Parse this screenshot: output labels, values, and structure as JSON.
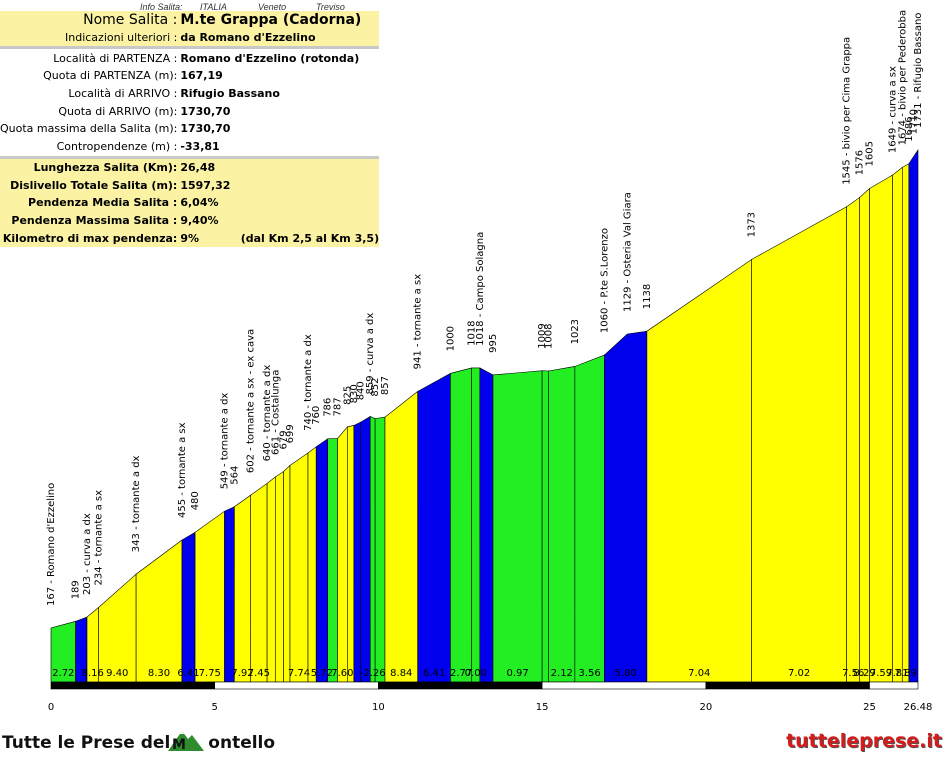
{
  "header": {
    "info_label": "Info Salita:",
    "country": "ITALIA",
    "region": "Veneto",
    "province": "Treviso"
  },
  "table": {
    "nome_label": "Nome Salita :",
    "nome_value": "M.te Grappa (Cadorna)",
    "indicazioni_label": "Indicazioni ulteriori :",
    "indicazioni_value": "da Romano d'Ezzelino",
    "partenza_label": "Località di PARTENZA :",
    "partenza_value": "Romano d'Ezzelino (rotonda)",
    "quota_partenza_label": "Quota di PARTENZA (m):",
    "quota_partenza_value": "167,19",
    "arrivo_label": "Località di ARRIVO :",
    "arrivo_value": "Rifugio Bassano",
    "quota_arrivo_label": "Quota di ARRIVO (m):",
    "quota_arrivo_value": "1730,70",
    "quota_max_label": "Quota massima della Salita (m):",
    "quota_max_value": "1730,70",
    "contropendenze_label": "Contropendenze (m) :",
    "contropendenze_value": "-33,81",
    "lunghezza_label": "Lunghezza Salita (Km):",
    "lunghezza_value": "26,48",
    "dislivello_label": "Dislivello Totale Salita (m):",
    "dislivello_value": "1597,32",
    "pend_media_label": "Pendenza Media Salita :",
    "pend_media_value": "6,04%",
    "pend_max_label": "Pendenza Massima Salita :",
    "pend_max_value": "9,40%",
    "km_max_label": "Kilometro di max pendenza:",
    "km_max_value": "9%",
    "km_max_range": "(dal Km 2,5 al Km 3,5)"
  },
  "footer": {
    "left_text_1": "Tutte le Prese del",
    "left_text_2": "ontello",
    "right_text": "tutteleprese.it"
  },
  "colors": {
    "green": "#22ee22",
    "yellow": "#ffff00",
    "blue": "#0000ee",
    "header_yellow": "#fbf3a3"
  },
  "chart_data": {
    "type": "area",
    "xlim": [
      0,
      26.48
    ],
    "x_ticks": [
      "0",
      "5",
      "10",
      "15",
      "20",
      "25",
      "26.48"
    ],
    "tick_values": [
      0,
      5,
      10,
      15,
      20,
      25,
      26.48
    ],
    "profile": [
      [
        0,
        167
      ],
      [
        0.75,
        189
      ],
      [
        1.1,
        203
      ],
      [
        1.45,
        234
      ],
      [
        2.6,
        343
      ],
      [
        4.0,
        455
      ],
      [
        4.4,
        480
      ],
      [
        5.3,
        549
      ],
      [
        5.6,
        564
      ],
      [
        6.1,
        602
      ],
      [
        6.6,
        640
      ],
      [
        6.85,
        661
      ],
      [
        7.1,
        679
      ],
      [
        7.3,
        699
      ],
      [
        7.85,
        740
      ],
      [
        8.1,
        760
      ],
      [
        8.45,
        786
      ],
      [
        8.75,
        787
      ],
      [
        9.05,
        825
      ],
      [
        9.25,
        830
      ],
      [
        9.45,
        840
      ],
      [
        9.75,
        859
      ],
      [
        9.9,
        852
      ],
      [
        10.2,
        857
      ],
      [
        11.2,
        941
      ],
      [
        12.2,
        1000
      ],
      [
        12.85,
        1018
      ],
      [
        13.1,
        1018
      ],
      [
        13.5,
        995
      ],
      [
        15.0,
        1009
      ],
      [
        15.2,
        1008
      ],
      [
        16.0,
        1023
      ],
      [
        16.9,
        1060
      ],
      [
        17.6,
        1129
      ],
      [
        18.2,
        1138
      ],
      [
        21.4,
        1373
      ],
      [
        24.3,
        1545
      ],
      [
        24.7,
        1576
      ],
      [
        25.0,
        1605
      ],
      [
        25.7,
        1649
      ],
      [
        26.0,
        1674
      ],
      [
        26.2,
        1686
      ],
      [
        26.48,
        1731
      ]
    ],
    "segments": [
      {
        "start": 0,
        "end": 0.75,
        "color": "green",
        "label": "2.72"
      },
      {
        "start": 0.75,
        "end": 1.1,
        "color": "blue",
        "label": ""
      },
      {
        "start": 1.1,
        "end": 1.45,
        "color": "yellow",
        "label": "8.16"
      },
      {
        "start": 1.45,
        "end": 2.6,
        "color": "yellow",
        "label": "9.40"
      },
      {
        "start": 2.6,
        "end": 4.0,
        "color": "yellow",
        "label": "8.30"
      },
      {
        "start": 4.0,
        "end": 4.4,
        "color": "blue",
        "label": "6.41"
      },
      {
        "start": 4.4,
        "end": 5.3,
        "color": "yellow",
        "label": "7.75"
      },
      {
        "start": 5.3,
        "end": 5.6,
        "color": "blue",
        "label": ""
      },
      {
        "start": 5.6,
        "end": 6.1,
        "color": "yellow",
        "label": "7.92"
      },
      {
        "start": 6.1,
        "end": 6.6,
        "color": "yellow",
        "label": "7.45"
      },
      {
        "start": 6.6,
        "end": 6.85,
        "color": "yellow",
        "label": ""
      },
      {
        "start": 6.85,
        "end": 7.1,
        "color": "yellow",
        "label": ""
      },
      {
        "start": 7.1,
        "end": 7.3,
        "color": "yellow",
        "label": ""
      },
      {
        "start": 7.3,
        "end": 7.85,
        "color": "yellow",
        "label": "7.74"
      },
      {
        "start": 7.85,
        "end": 8.1,
        "color": "yellow",
        "label": ""
      },
      {
        "start": 8.1,
        "end": 8.45,
        "color": "blue",
        "label": "5.72"
      },
      {
        "start": 8.45,
        "end": 8.75,
        "color": "green",
        "label": ""
      },
      {
        "start": 8.75,
        "end": 9.05,
        "color": "yellow",
        "label": "7.60"
      },
      {
        "start": 9.05,
        "end": 9.25,
        "color": "yellow",
        "label": ""
      },
      {
        "start": 9.25,
        "end": 9.45,
        "color": "blue",
        "label": ""
      },
      {
        "start": 9.45,
        "end": 9.75,
        "color": "blue",
        "label": ""
      },
      {
        "start": 9.75,
        "end": 9.9,
        "color": "green",
        "label": "-2.26"
      },
      {
        "start": 9.9,
        "end": 10.2,
        "color": "green",
        "label": ""
      },
      {
        "start": 10.2,
        "end": 11.2,
        "color": "yellow",
        "label": "8.84"
      },
      {
        "start": 11.2,
        "end": 12.2,
        "color": "blue",
        "label": "6.41"
      },
      {
        "start": 12.2,
        "end": 12.85,
        "color": "green",
        "label": "2.77"
      },
      {
        "start": 12.85,
        "end": 13.1,
        "color": "green",
        "label": "0.00"
      },
      {
        "start": 13.1,
        "end": 13.5,
        "color": "blue",
        "label": ""
      },
      {
        "start": 13.5,
        "end": 15.0,
        "color": "green",
        "label": "0.97"
      },
      {
        "start": 15.0,
        "end": 15.2,
        "color": "green",
        "label": ""
      },
      {
        "start": 15.2,
        "end": 16.0,
        "color": "green",
        "label": "2.12"
      },
      {
        "start": 16.0,
        "end": 16.9,
        "color": "green",
        "label": "3.56"
      },
      {
        "start": 16.9,
        "end": 18.2,
        "color": "blue",
        "label": "5.80"
      },
      {
        "start": 18.2,
        "end": 21.4,
        "color": "yellow",
        "label": "7.04"
      },
      {
        "start": 21.4,
        "end": 24.3,
        "color": "yellow",
        "label": "7.02"
      },
      {
        "start": 24.3,
        "end": 24.7,
        "color": "yellow",
        "label": "7.56"
      },
      {
        "start": 24.7,
        "end": 25.0,
        "color": "yellow",
        "label": "8.29"
      },
      {
        "start": 25.0,
        "end": 25.7,
        "color": "yellow",
        "label": "7.59"
      },
      {
        "start": 25.7,
        "end": 26.0,
        "color": "yellow",
        "label": "7.81"
      },
      {
        "start": 26.0,
        "end": 26.2,
        "color": "yellow",
        "label": "7.89"
      },
      {
        "start": 26.2,
        "end": 26.48,
        "color": "blue",
        "label": ""
      }
    ],
    "waypoints": [
      {
        "x": 0,
        "alt": 167,
        "text": "167 - Romano d'Ezzelino"
      },
      {
        "x": 0.75,
        "alt": 189,
        "text": "189"
      },
      {
        "x": 1.1,
        "alt": 203,
        "text": "203 - curva a dx"
      },
      {
        "x": 1.45,
        "alt": 234,
        "text": "234 - tornante a sx"
      },
      {
        "x": 2.6,
        "alt": 343,
        "text": "343 - tornante a dx"
      },
      {
        "x": 4.0,
        "alt": 455,
        "text": "455 - tornante a sx"
      },
      {
        "x": 4.4,
        "alt": 480,
        "text": "480"
      },
      {
        "x": 5.3,
        "alt": 549,
        "text": "549 - tornante a dx"
      },
      {
        "x": 5.6,
        "alt": 564,
        "text": "564"
      },
      {
        "x": 6.1,
        "alt": 602,
        "text": "602 - tornante a sx - ex cava"
      },
      {
        "x": 6.6,
        "alt": 640,
        "text": "640 - tornante a dx"
      },
      {
        "x": 6.85,
        "alt": 661,
        "text": "661 - Costalunga"
      },
      {
        "x": 7.1,
        "alt": 679,
        "text": "679"
      },
      {
        "x": 7.3,
        "alt": 699,
        "text": "699"
      },
      {
        "x": 7.85,
        "alt": 740,
        "text": "740 - tornante a dx"
      },
      {
        "x": 8.1,
        "alt": 760,
        "text": "760"
      },
      {
        "x": 8.45,
        "alt": 786,
        "text": "786"
      },
      {
        "x": 8.75,
        "alt": 787,
        "text": "787"
      },
      {
        "x": 9.05,
        "alt": 825,
        "text": "825"
      },
      {
        "x": 9.25,
        "alt": 830,
        "text": "830"
      },
      {
        "x": 9.45,
        "alt": 840,
        "text": "840"
      },
      {
        "x": 9.75,
        "alt": 859,
        "text": "859 - curva a dx"
      },
      {
        "x": 9.9,
        "alt": 852,
        "text": "852"
      },
      {
        "x": 10.2,
        "alt": 857,
        "text": "857"
      },
      {
        "x": 11.2,
        "alt": 941,
        "text": "941 - tornante a sx"
      },
      {
        "x": 12.2,
        "alt": 1000,
        "text": "1000"
      },
      {
        "x": 12.85,
        "alt": 1018,
        "text": "1018"
      },
      {
        "x": 13.1,
        "alt": 1018,
        "text": "1018 - Campo Solagna"
      },
      {
        "x": 13.5,
        "alt": 995,
        "text": "995"
      },
      {
        "x": 15.0,
        "alt": 1009,
        "text": "1009"
      },
      {
        "x": 15.2,
        "alt": 1008,
        "text": "1008"
      },
      {
        "x": 16.0,
        "alt": 1023,
        "text": "1023"
      },
      {
        "x": 16.9,
        "alt": 1060,
        "text": "1060 - P.te S.Lorenzo"
      },
      {
        "x": 17.6,
        "alt": 1129,
        "text": "1129 - Osteria Val Giara"
      },
      {
        "x": 18.2,
        "alt": 1138,
        "text": "1138"
      },
      {
        "x": 21.4,
        "alt": 1373,
        "text": "1373"
      },
      {
        "x": 24.3,
        "alt": 1545,
        "text": "1545 - bivio per Cima Grappa"
      },
      {
        "x": 24.7,
        "alt": 1576,
        "text": "1576"
      },
      {
        "x": 25.0,
        "alt": 1605,
        "text": "1605"
      },
      {
        "x": 25.7,
        "alt": 1649,
        "text": "1649 - curva a sx"
      },
      {
        "x": 26.0,
        "alt": 1674,
        "text": "1674 - bivio per Pederobba"
      },
      {
        "x": 26.2,
        "alt": 1686,
        "text": "1686"
      },
      {
        "x": 26.35,
        "alt": 1710,
        "text": "1710"
      },
      {
        "x": 26.48,
        "alt": 1731,
        "text": "1731 - Rifugio Bassano"
      }
    ]
  }
}
